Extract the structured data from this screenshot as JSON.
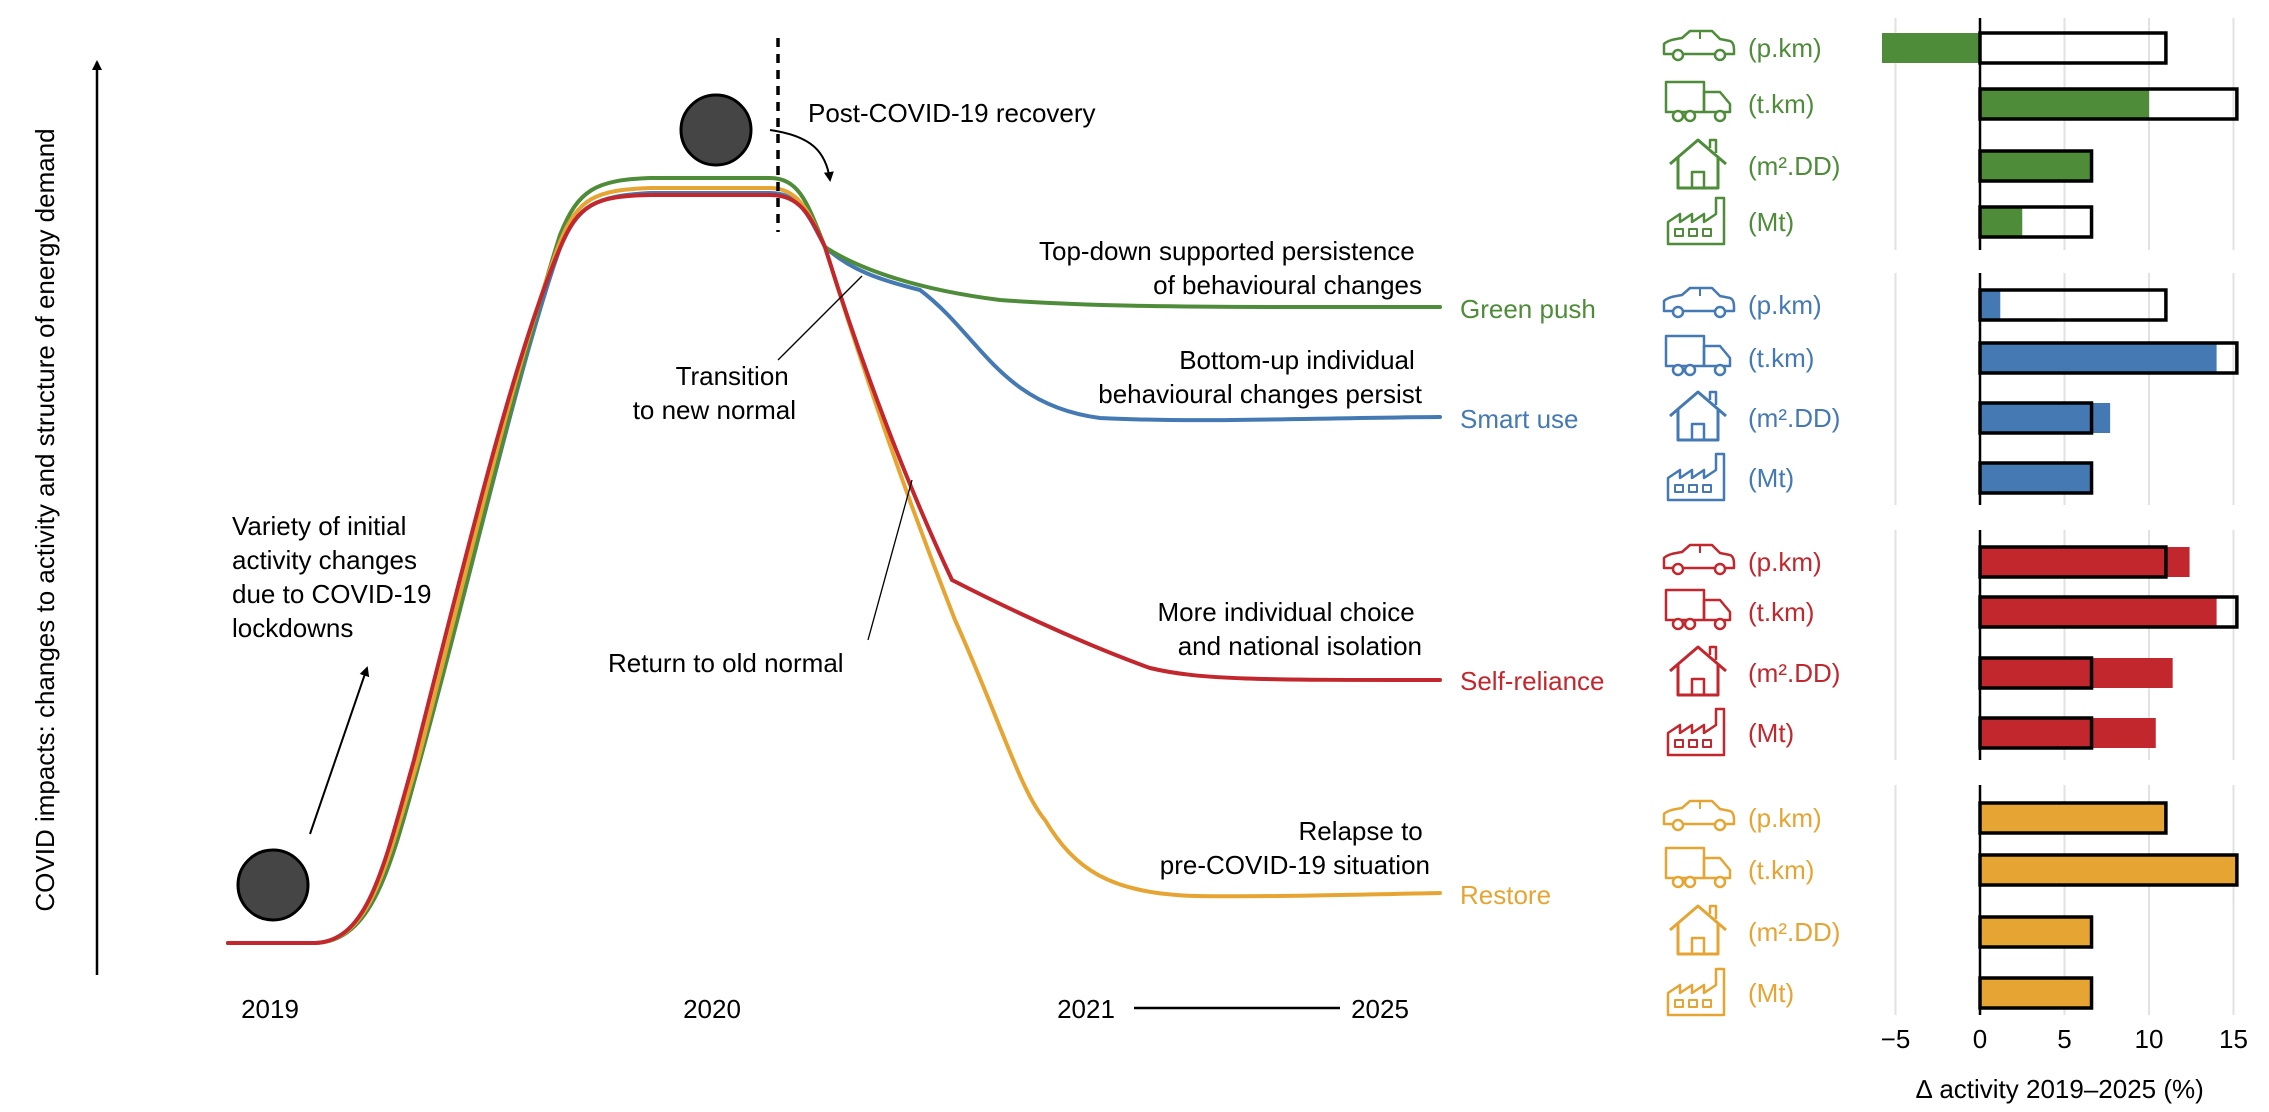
{
  "colors": {
    "green": "#4e8c3a",
    "blue": "#4479b3",
    "red": "#c1272d",
    "yellow": "#e6a533",
    "ball": "#454545",
    "grid": "#e2e2e2"
  },
  "left": {
    "y_axis_label": "COVID impacts: changes to activity and structure of energy demand",
    "x_labels": {
      "y2019": "2019",
      "y2020": "2020",
      "y2021": "2021",
      "y2025": "2025"
    },
    "annotations": {
      "initial": [
        "Variety of initial",
        "activity changes",
        "due to COVID-19",
        "lockdowns"
      ],
      "recovery": "Post-COVID-19 recovery",
      "transition": [
        "Transition",
        "to new normal"
      ],
      "return_old": "Return to old normal",
      "green_desc": [
        "Top-down supported persistence",
        "of behavioural changes"
      ],
      "blue_desc": [
        "Bottom-up individual",
        "behavioural changes persist"
      ],
      "red_desc": [
        "More individual choice",
        "and national isolation"
      ],
      "yellow_desc": [
        "Relapse to",
        "pre-COVID-19 situation"
      ]
    },
    "scenarios": {
      "green": "Green push",
      "blue": "Smart use",
      "red": "Self-reliance",
      "yellow": "Restore"
    }
  },
  "chart_data": {
    "type": "bar",
    "xlabel": "∆ activity 2019–2025 (%)",
    "xlim": [
      -6,
      16
    ],
    "xticks": [
      -5,
      0,
      5,
      10,
      15
    ],
    "xtick_labels": [
      "−5",
      "0",
      "5",
      "10",
      "15"
    ],
    "categories": [
      "(p.km)",
      "(t.km)",
      "(m².DD)",
      "(Mt)"
    ],
    "category_icons": [
      "car-icon",
      "truck-icon",
      "house-icon",
      "factory-icon"
    ],
    "restore_reference": [
      11,
      15.2,
      6.6,
      6.6
    ],
    "series": [
      {
        "name": "Green push",
        "color": "#4e8c3a",
        "values": [
          -5.8,
          10,
          6.6,
          2.5
        ]
      },
      {
        "name": "Smart use",
        "color": "#4479b3",
        "values": [
          1.2,
          14,
          7.7,
          6.6
        ]
      },
      {
        "name": "Self-reliance",
        "color": "#c1272d",
        "values": [
          12.4,
          14,
          11.4,
          10.4
        ]
      },
      {
        "name": "Restore",
        "color": "#e6a533",
        "values": [
          11,
          15.2,
          6.6,
          6.6
        ]
      }
    ]
  }
}
